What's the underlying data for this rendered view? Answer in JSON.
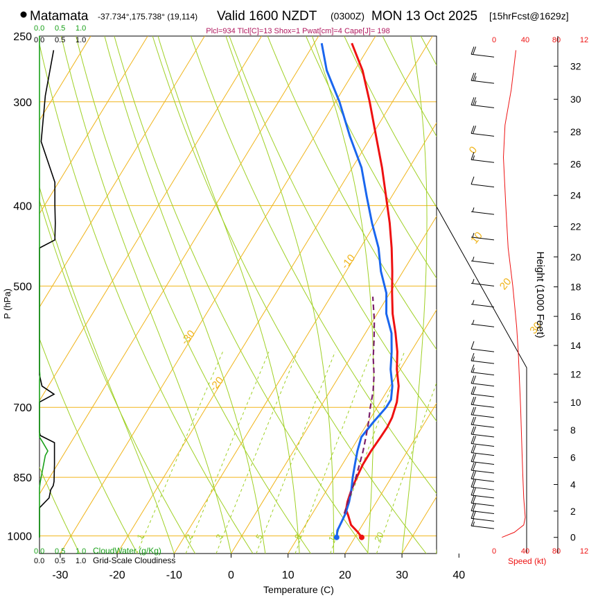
{
  "header": {
    "location": "Matamata",
    "coords": "-37.734°,175.738° (19,114)",
    "valid": "Valid 1600 NZDT",
    "utc": "(0300Z)",
    "date": "MON 13 Oct 2025",
    "forecast": "[15hrFcst@1629z]",
    "params": "Plcl=934 Tlcl[C]=13 Shox=1 Pwat[cm]=4 Cape[J]= 198"
  },
  "chart_data": {
    "type": "line",
    "subtype": "skew-t log-p sounding",
    "xlabel": "Temperature (C)",
    "ylabel": "P (hPa)",
    "height_label": "Height (1000 Feet)",
    "x_ticks": [
      -30,
      -20,
      -10,
      0,
      10,
      20,
      30,
      40
    ],
    "p_ticks": [
      250,
      300,
      400,
      500,
      700,
      850,
      1000
    ],
    "height_ticks": [
      0,
      2,
      4,
      6,
      8,
      10,
      12,
      14,
      16,
      18,
      20,
      22,
      24,
      26,
      28,
      30,
      32
    ],
    "isotherm_labels": [
      -30,
      -20,
      -10,
      0,
      10,
      20,
      30
    ],
    "mixing_ratio_labels": [
      "1",
      "2",
      "3",
      "5",
      "8",
      "12",
      "20"
    ],
    "cloud_scale_ticks": [
      "0.0",
      "0.5",
      "1.0"
    ],
    "speed_ticks": [
      "0",
      "40",
      "80",
      "12"
    ],
    "cloud_water_label": "CloudWater (g/Kg)",
    "cloudiness_label": "Grid-Scale Cloudiness",
    "speed_label": "Speed (kt)",
    "series": [
      {
        "name": "Temperature",
        "color": "#ee1111",
        "points": [
          [
            21.2,
            1004
          ],
          [
            20,
            990
          ],
          [
            18,
            970
          ],
          [
            16.5,
            945
          ],
          [
            15.5,
            930
          ],
          [
            14.9,
            910
          ],
          [
            14.3,
            880
          ],
          [
            13.9,
            850
          ],
          [
            13.6,
            820
          ],
          [
            13.6,
            790
          ],
          [
            13.8,
            760
          ],
          [
            13.9,
            740
          ],
          [
            13.7,
            720
          ],
          [
            12.9,
            690
          ],
          [
            11.5,
            660
          ],
          [
            9.4,
            630
          ],
          [
            7.6,
            600
          ],
          [
            5.3,
            570
          ],
          [
            2.7,
            540
          ],
          [
            0.4,
            510
          ],
          [
            -1.9,
            480
          ],
          [
            -4.5,
            450
          ],
          [
            -7.5,
            420
          ],
          [
            -11,
            390
          ],
          [
            -14.8,
            360
          ],
          [
            -19.2,
            330
          ],
          [
            -24,
            300
          ],
          [
            -28.6,
            275
          ],
          [
            -33.4,
            255
          ]
        ]
      },
      {
        "name": "Dew point",
        "color": "#1a66ee",
        "points": [
          [
            16.8,
            1004
          ],
          [
            16.2,
            985
          ],
          [
            16,
            960
          ],
          [
            15.8,
            940
          ],
          [
            15.2,
            910
          ],
          [
            14.3,
            880
          ],
          [
            13.2,
            850
          ],
          [
            12.2,
            820
          ],
          [
            11.2,
            790
          ],
          [
            10.4,
            760
          ],
          [
            10.9,
            730
          ],
          [
            11.6,
            700
          ],
          [
            11.6,
            685
          ],
          [
            10.4,
            660
          ],
          [
            8.3,
            630
          ],
          [
            6.6,
            600
          ],
          [
            4.6,
            570
          ],
          [
            1.6,
            540
          ],
          [
            -0.6,
            510
          ],
          [
            -3.9,
            480
          ],
          [
            -6.8,
            450
          ],
          [
            -10.6,
            420
          ],
          [
            -14.4,
            390
          ],
          [
            -18.4,
            360
          ],
          [
            -23.8,
            330
          ],
          [
            -29.3,
            300
          ],
          [
            -34.9,
            275
          ],
          [
            -38.7,
            255
          ]
        ]
      },
      {
        "name": "Parcel",
        "color": "#7a1f6a",
        "style": "dashed",
        "points": [
          [
            15.6,
            940
          ],
          [
            14.8,
            900
          ],
          [
            14,
            860
          ],
          [
            13,
            820
          ],
          [
            12.2,
            790
          ],
          [
            11.2,
            760
          ],
          [
            10.1,
            730
          ],
          [
            8.8,
            700
          ],
          [
            7.6,
            670
          ],
          [
            6,
            640
          ],
          [
            4,
            610
          ],
          [
            2.2,
            580
          ],
          [
            0.2,
            550
          ],
          [
            -2.6,
            515
          ]
        ]
      }
    ],
    "surface_markers": [
      {
        "name": "Surface temperature",
        "t": 21.2,
        "p": 1004
      },
      {
        "name": "Surface dew point",
        "t": 16.8,
        "p": 1004
      }
    ],
    "cloudiness": [
      [
        0,
        1004
      ],
      [
        0,
        925
      ],
      [
        0.23,
        900
      ],
      [
        0.27,
        880
      ],
      [
        0.33,
        870
      ],
      [
        0.35,
        860
      ],
      [
        0.36,
        820
      ],
      [
        0.36,
        772
      ],
      [
        0.02,
        757
      ],
      [
        0,
        750
      ],
      [
        0,
        690
      ],
      [
        0.35,
        675
      ],
      [
        0.06,
        660
      ],
      [
        0,
        640
      ],
      [
        0,
        450
      ],
      [
        0.37,
        440
      ],
      [
        0.38,
        420
      ],
      [
        0.37,
        400
      ],
      [
        0.37,
        375
      ],
      [
        0.04,
        335
      ],
      [
        0.14,
        295
      ],
      [
        0.34,
        260
      ]
    ],
    "cloud_water": [
      [
        0,
        1004
      ],
      [
        0,
        875
      ],
      [
        0.02,
        860
      ],
      [
        0.14,
        800
      ],
      [
        0.2,
        790
      ],
      [
        0.07,
        770
      ],
      [
        0,
        760
      ],
      [
        0,
        650
      ],
      [
        0.01,
        640
      ],
      [
        0,
        630
      ],
      [
        0,
        250
      ]
    ],
    "wind_speed": [
      [
        1004,
        10
      ],
      [
        990,
        26
      ],
      [
        970,
        38
      ],
      [
        950,
        40
      ],
      [
        900,
        38
      ],
      [
        850,
        37
      ],
      [
        800,
        36
      ],
      [
        700,
        34
      ],
      [
        600,
        31
      ],
      [
        560,
        29
      ],
      [
        500,
        24
      ],
      [
        450,
        18
      ],
      [
        400,
        15
      ],
      [
        350,
        12
      ],
      [
        320,
        14
      ],
      [
        290,
        22
      ],
      [
        260,
        28
      ]
    ],
    "wind_barbs": [
      [
        980,
        15
      ],
      [
        960,
        20
      ],
      [
        940,
        20
      ],
      [
        920,
        20
      ],
      [
        900,
        20
      ],
      [
        880,
        20
      ],
      [
        860,
        20
      ],
      [
        840,
        20
      ],
      [
        820,
        20
      ],
      [
        800,
        20
      ],
      [
        780,
        20
      ],
      [
        760,
        20
      ],
      [
        740,
        20
      ],
      [
        720,
        20
      ],
      [
        700,
        20
      ],
      [
        680,
        20
      ],
      [
        660,
        20
      ],
      [
        640,
        15
      ],
      [
        620,
        15
      ],
      [
        600,
        10
      ],
      [
        560,
        5
      ],
      [
        530,
        5
      ],
      [
        500,
        5
      ],
      [
        470,
        5
      ],
      [
        440,
        5
      ],
      [
        410,
        5
      ],
      [
        380,
        10
      ],
      [
        355,
        15
      ],
      [
        330,
        20
      ],
      [
        305,
        25
      ],
      [
        285,
        25
      ],
      [
        265,
        20
      ]
    ]
  }
}
